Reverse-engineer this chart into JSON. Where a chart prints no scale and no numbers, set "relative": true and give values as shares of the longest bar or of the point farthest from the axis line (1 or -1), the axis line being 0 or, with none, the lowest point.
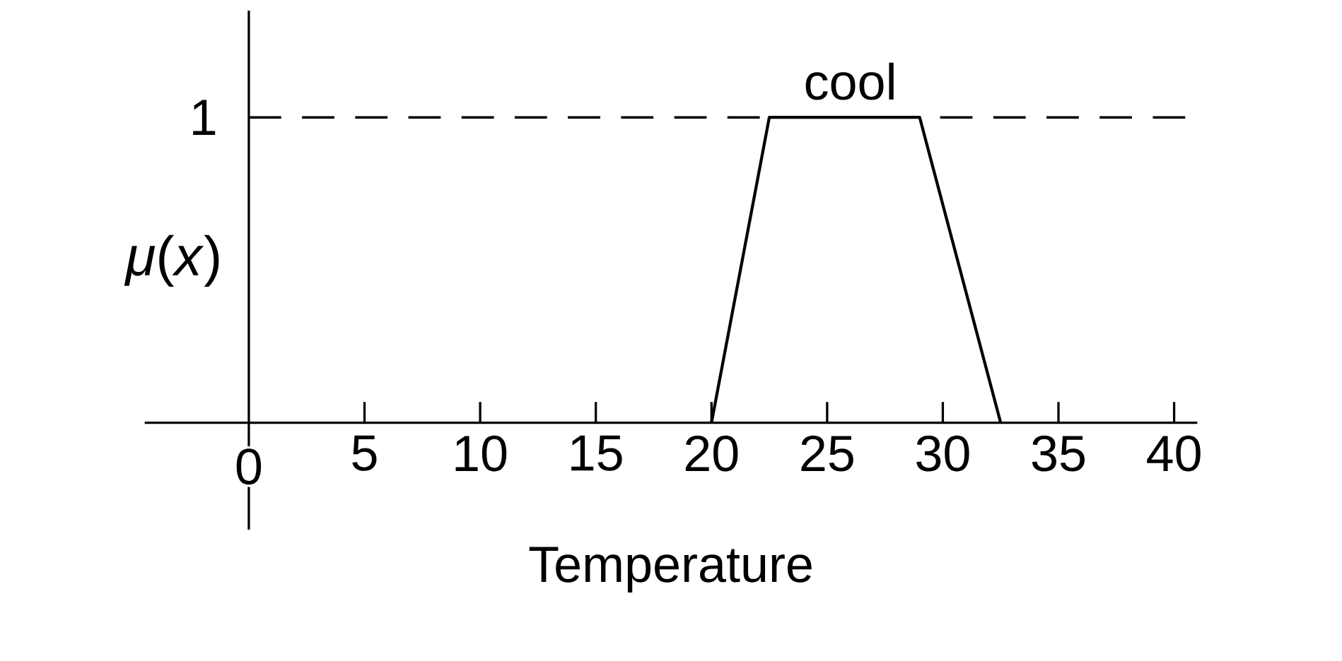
{
  "chart_data": {
    "type": "line",
    "xlabel": "Temperature",
    "ylabel": "*μ*(*x*)",
    "x": [
      20,
      22.5,
      29,
      32.5
    ],
    "series": [
      {
        "color": "#000000",
        "values": [
          0,
          1,
          1,
          0
        ]
      }
    ],
    "xlim": [
      -4.5,
      41
    ],
    "relative": true,
    "xticks": [
      0,
      5,
      10,
      15,
      20,
      25,
      30,
      35,
      40
    ],
    "ref_lines": [
      {
        "axis": "y",
        "value": 1,
        "line_style": "dashed",
        "color": "#000000",
        "label": "1"
      }
    ],
    "annotations": [
      {
        "text": "cool",
        "x": 26,
        "y": 1
      }
    ],
    "line_style": "solid",
    "marker": "none"
  }
}
